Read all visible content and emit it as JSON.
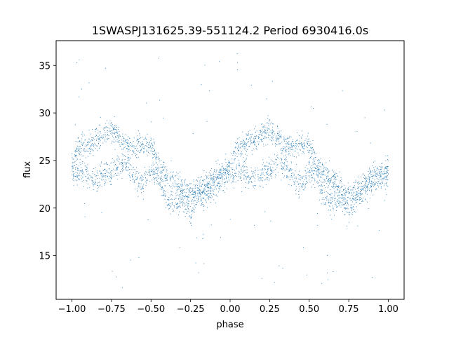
{
  "chart_data": {
    "type": "scatter",
    "title": "1SWASPJ131625.39-551124.2 Period 6930416.0s",
    "xlabel": "phase",
    "ylabel": "flux",
    "xlim": [
      -1.1,
      1.1
    ],
    "ylim": [
      10.4,
      37.6
    ],
    "xticks": [
      -1.0,
      -0.75,
      -0.5,
      -0.25,
      0.0,
      0.25,
      0.5,
      0.75,
      1.0
    ],
    "xtick_labels": [
      "−1.00",
      "−0.75",
      "−0.50",
      "−0.25",
      "0.00",
      "0.25",
      "0.50",
      "0.75",
      "1.00"
    ],
    "yticks": [
      15,
      20,
      25,
      30,
      35
    ],
    "ytick_labels": [
      "15",
      "20",
      "25",
      "30",
      "35"
    ],
    "grid": false,
    "legend": "none",
    "marker_color": "#1f77b4",
    "series": [
      {
        "phase_range": [
          -1.0,
          1.0
        ],
        "repeats_every": 1.0,
        "upper_branch": {
          "phase": [
            0.0,
            0.05,
            0.1,
            0.15,
            0.2,
            0.25,
            0.3,
            0.35,
            0.4,
            0.45,
            0.5,
            0.55,
            0.6,
            0.65,
            0.7,
            0.75,
            0.8,
            0.85,
            0.9,
            0.95,
            1.0
          ],
          "flux": [
            24.5,
            26.5,
            26.5,
            27.0,
            27.8,
            28.2,
            27.5,
            26.5,
            26.5,
            26.8,
            26.5,
            24.5,
            23.5,
            23.0,
            22.0,
            21.5,
            22.0,
            22.5,
            23.5,
            23.5,
            24.5
          ]
        },
        "lower_branch": {
          "phase": [
            0.0,
            0.05,
            0.1,
            0.15,
            0.2,
            0.25,
            0.3,
            0.35,
            0.4,
            0.45,
            0.5,
            0.55,
            0.6,
            0.65,
            0.7,
            0.75,
            0.8,
            0.85,
            0.9,
            0.95,
            1.0
          ],
          "flux": [
            23.5,
            24.0,
            23.5,
            23.0,
            23.5,
            23.8,
            24.5,
            24.5,
            23.0,
            22.5,
            24.0,
            23.0,
            21.0,
            20.5,
            21.0,
            19.5,
            21.0,
            21.5,
            22.5,
            23.0,
            23.5
          ]
        },
        "scatter_spread": 1.5,
        "outlier_flux_range": [
          11.5,
          36.5
        ]
      }
    ]
  }
}
